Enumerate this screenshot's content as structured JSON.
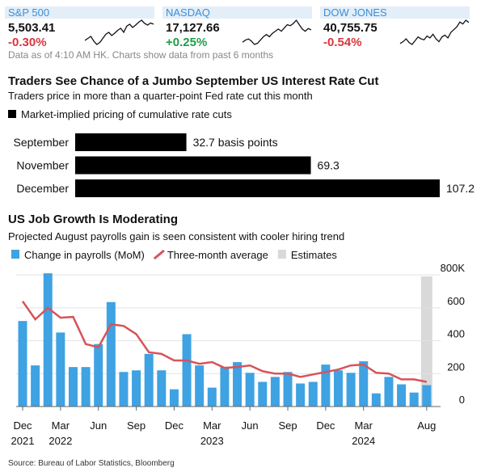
{
  "tickers": [
    {
      "name": "S&P 500",
      "value": "5,503.41",
      "change": "-0.30%",
      "color": "#d9363e",
      "sparkline": [
        5100,
        5150,
        5200,
        5080,
        5000,
        5050,
        5150,
        5250,
        5300,
        5220,
        5280,
        5350,
        5400,
        5300,
        5450,
        5500,
        5420,
        5480,
        5550,
        5600,
        5520,
        5480,
        5530,
        5503
      ]
    },
    {
      "name": "NASDAQ",
      "value": "17,127.66",
      "change": "+0.25%",
      "color": "#1e9e4a",
      "sparkline": [
        16000,
        16200,
        16300,
        16100,
        15800,
        15900,
        16200,
        16500,
        16700,
        16500,
        16800,
        17000,
        17200,
        17000,
        17300,
        17600,
        17500,
        17700,
        18000,
        17600,
        17200,
        17000,
        17250,
        17127
      ]
    },
    {
      "name": "DOW JONES",
      "value": "40,755.75",
      "change": "-0.54%",
      "color": "#d9363e",
      "sparkline": [
        38500,
        38700,
        39000,
        38600,
        38400,
        38800,
        39200,
        39000,
        38900,
        39300,
        39100,
        39500,
        39000,
        38700,
        39200,
        39400,
        39100,
        39700,
        40000,
        40300,
        40800,
        40600,
        41000,
        40755
      ]
    }
  ],
  "note": "Data as of 4:10 AM HK. Charts show data from past 6 months",
  "chart_data": [
    {
      "type": "hbar",
      "title": "Traders See Chance of a Jumbo September US Interest Rate Cut",
      "subtitle": "Traders price in more than a quarter-point Fed rate cut this month",
      "legend": "Market-implied pricing of cumulative rate cuts",
      "color": "#000000",
      "categories": [
        "September",
        "November",
        "December"
      ],
      "values": [
        32.7,
        69.3,
        107.2
      ],
      "value_labels": [
        "32.7 basis points",
        "69.3",
        "107.2"
      ]
    },
    {
      "type": "bar",
      "title": "US Job Growth Is Moderating",
      "subtitle": "Projected August payrolls gain is seen consistent with cooler hiring trend",
      "categories": [
        "Dec 2021",
        null,
        null,
        "Mar 2022",
        null,
        null,
        "Jun",
        null,
        null,
        "Sep",
        null,
        null,
        "Dec",
        null,
        null,
        "Mar 2023",
        null,
        null,
        "Jun",
        null,
        null,
        "Sep",
        null,
        null,
        "Dec",
        null,
        null,
        "Mar 2024",
        null,
        null,
        null,
        null,
        "Aug"
      ],
      "series": [
        {
          "name": "Change in payrolls (MoM)",
          "type": "bar",
          "color": "#3fa2e2",
          "values": [
            520,
            250,
            810,
            450,
            240,
            240,
            380,
            635,
            210,
            220,
            320,
            220,
            105,
            440,
            250,
            115,
            240,
            270,
            205,
            150,
            180,
            210,
            140,
            150,
            255,
            220,
            205,
            275,
            80,
            180,
            135,
            85,
            130
          ]
        },
        {
          "name": "Three-month average",
          "type": "line",
          "color": "#d6545a",
          "values": [
            640,
            530,
            600,
            540,
            545,
            380,
            360,
            500,
            490,
            440,
            330,
            320,
            280,
            280,
            260,
            270,
            235,
            240,
            250,
            215,
            200,
            200,
            180,
            195,
            210,
            225,
            250,
            255,
            205,
            200,
            165,
            165,
            150
          ]
        }
      ],
      "estimates": {
        "name": "Estimates",
        "color": "#d9d9d9",
        "start": 32
      },
      "ylim": [
        0,
        850
      ],
      "yticks": [
        0,
        200,
        400,
        600,
        {
          "value": 800,
          "label": "800K"
        }
      ],
      "grid": true
    }
  ],
  "source": "Source: Bureau of Labor Statistics, Bloomberg"
}
